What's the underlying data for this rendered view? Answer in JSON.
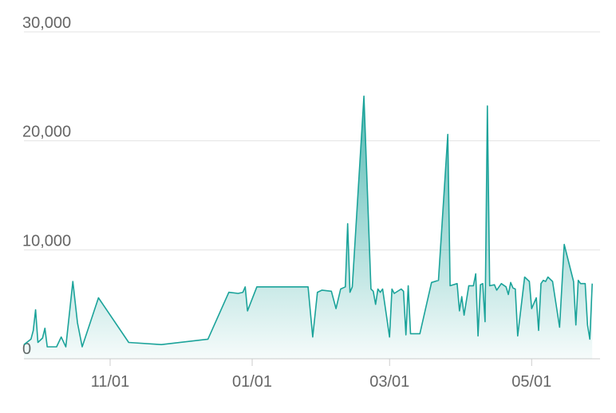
{
  "chart_data": {
    "type": "area",
    "x": [
      "09/25",
      "09/28",
      "09/29",
      "09/30",
      "10/01",
      "10/03",
      "10/04",
      "10/05",
      "10/09",
      "10/11",
      "10/13",
      "10/16",
      "10/18",
      "10/20",
      "10/27",
      "11/09",
      "11/23",
      "12/13",
      "12/22",
      "12/26",
      "12/28",
      "12/29",
      "12/30",
      "01/03",
      "01/25",
      "01/27",
      "01/29",
      "01/31",
      "02/04",
      "02/06",
      "02/08",
      "02/10",
      "02/11",
      "02/12",
      "02/13",
      "02/18",
      "02/21",
      "02/22",
      "02/23",
      "02/24",
      "02/25",
      "02/26",
      "03/01",
      "03/02",
      "03/03",
      "03/06",
      "03/07",
      "03/08",
      "03/09",
      "03/10",
      "03/14",
      "03/19",
      "03/22",
      "03/26",
      "03/27",
      "03/30",
      "03/31",
      "04/01",
      "04/02",
      "04/04",
      "04/06",
      "04/07",
      "04/08",
      "04/09",
      "04/10",
      "04/11",
      "04/12",
      "04/13",
      "04/15",
      "04/16",
      "04/18",
      "04/20",
      "04/21",
      "04/22",
      "04/23",
      "04/24",
      "04/25",
      "04/28",
      "04/30",
      "05/01",
      "05/03",
      "05/04",
      "05/05",
      "05/06",
      "05/07",
      "05/08",
      "05/10",
      "05/13",
      "05/15",
      "05/19",
      "05/20",
      "05/21",
      "05/22",
      "05/24",
      "05/25",
      "05/26",
      "05/27"
    ],
    "values": [
      1300,
      1800,
      2600,
      4500,
      1500,
      1900,
      2800,
      1100,
      1100,
      2000,
      1100,
      7100,
      3300,
      1100,
      5600,
      1500,
      1300,
      1800,
      6100,
      6000,
      6100,
      6600,
      4400,
      6600,
      6600,
      2000,
      6100,
      6300,
      6200,
      4600,
      6400,
      6600,
      12400,
      6100,
      6600,
      24100,
      6400,
      6200,
      5000,
      6400,
      6100,
      6400,
      2000,
      6400,
      6000,
      6400,
      6200,
      2200,
      6700,
      2300,
      2300,
      7000,
      7200,
      20600,
      6700,
      6900,
      4400,
      5700,
      4000,
      6700,
      6700,
      7800,
      2100,
      6800,
      6900,
      3400,
      23200,
      6700,
      6800,
      6300,
      6900,
      6600,
      5900,
      7000,
      6500,
      6400,
      2100,
      7500,
      7100,
      4600,
      5600,
      2600,
      6900,
      7200,
      7100,
      7500,
      7100,
      2900,
      10500,
      7100,
      3100,
      7200,
      6900,
      6900,
      3100,
      1800,
      6900
    ],
    "color": "#1ba39a",
    "xlim": [
      "09/25",
      "05/29"
    ],
    "xticks": [
      "11/01",
      "01/01",
      "03/01",
      "05/01"
    ],
    "ylim": [
      0,
      30000
    ],
    "yticks": [
      0,
      {
        "value": 10000,
        "label": "10,000"
      },
      {
        "value": 20000,
        "label": "20,000"
      },
      {
        "value": 30000,
        "label": "30,000"
      }
    ],
    "grid": true
  }
}
